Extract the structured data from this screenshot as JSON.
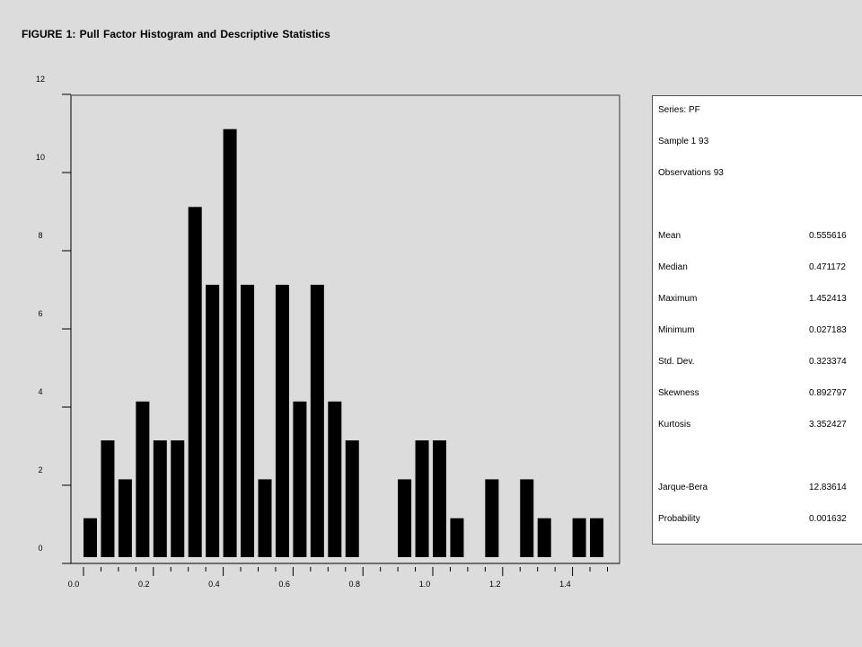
{
  "figure_title": "FIGURE 1: Pull Factor Histogram and Descriptive Statistics",
  "chart_data": {
    "type": "bar",
    "title": "FIGURE 1: Pull Factor Histogram and Descriptive Statistics",
    "xlabel": "",
    "ylabel": "",
    "bin_width": 0.05,
    "x": [
      0.05,
      0.1,
      0.15,
      0.2,
      0.25,
      0.3,
      0.35,
      0.4,
      0.45,
      0.5,
      0.55,
      0.6,
      0.65,
      0.7,
      0.75,
      0.8,
      0.85,
      0.9,
      0.95,
      1.0,
      1.05,
      1.1,
      1.15,
      1.2,
      1.25,
      1.3,
      1.35,
      1.4,
      1.45
    ],
    "values": [
      1,
      3,
      2,
      4,
      3,
      3,
      9,
      7,
      11,
      7,
      2,
      7,
      4,
      7,
      4,
      3,
      0,
      0,
      2,
      3,
      3,
      1,
      0,
      2,
      0,
      2,
      1,
      0,
      1
    ],
    "extra_bar": {
      "x": 1.475,
      "value": 1
    },
    "xlim": [
      0.0,
      1.55
    ],
    "ylim": [
      0,
      12
    ],
    "x_ticks": [
      "0.0",
      "0.2",
      "0.4",
      "0.6",
      "0.8",
      "1.0",
      "1.2",
      "1.4"
    ],
    "y_ticks": [
      "0",
      "2",
      "4",
      "6",
      "8",
      "10",
      "12"
    ],
    "grid": false,
    "legend": "none"
  },
  "stats": {
    "series": "Series: PF",
    "sample": "Sample 1 93",
    "observations": "Observations 93",
    "rows_a": [
      {
        "label": "Mean",
        "value": "0.555616"
      },
      {
        "label": "Median",
        "value": "0.471172"
      },
      {
        "label": "Maximum",
        "value": "1.452413"
      },
      {
        "label": "Minimum",
        "value": "0.027183"
      },
      {
        "label": "Std. Dev.",
        "value": "0.323374"
      },
      {
        "label": "Skewness",
        "value": "0.892797"
      },
      {
        "label": "Kurtosis",
        "value": "3.352427"
      }
    ],
    "rows_b": [
      {
        "label": "Jarque-Bera",
        "value": "12.83614"
      },
      {
        "label": "Probability",
        "value": "0.001632"
      }
    ]
  }
}
